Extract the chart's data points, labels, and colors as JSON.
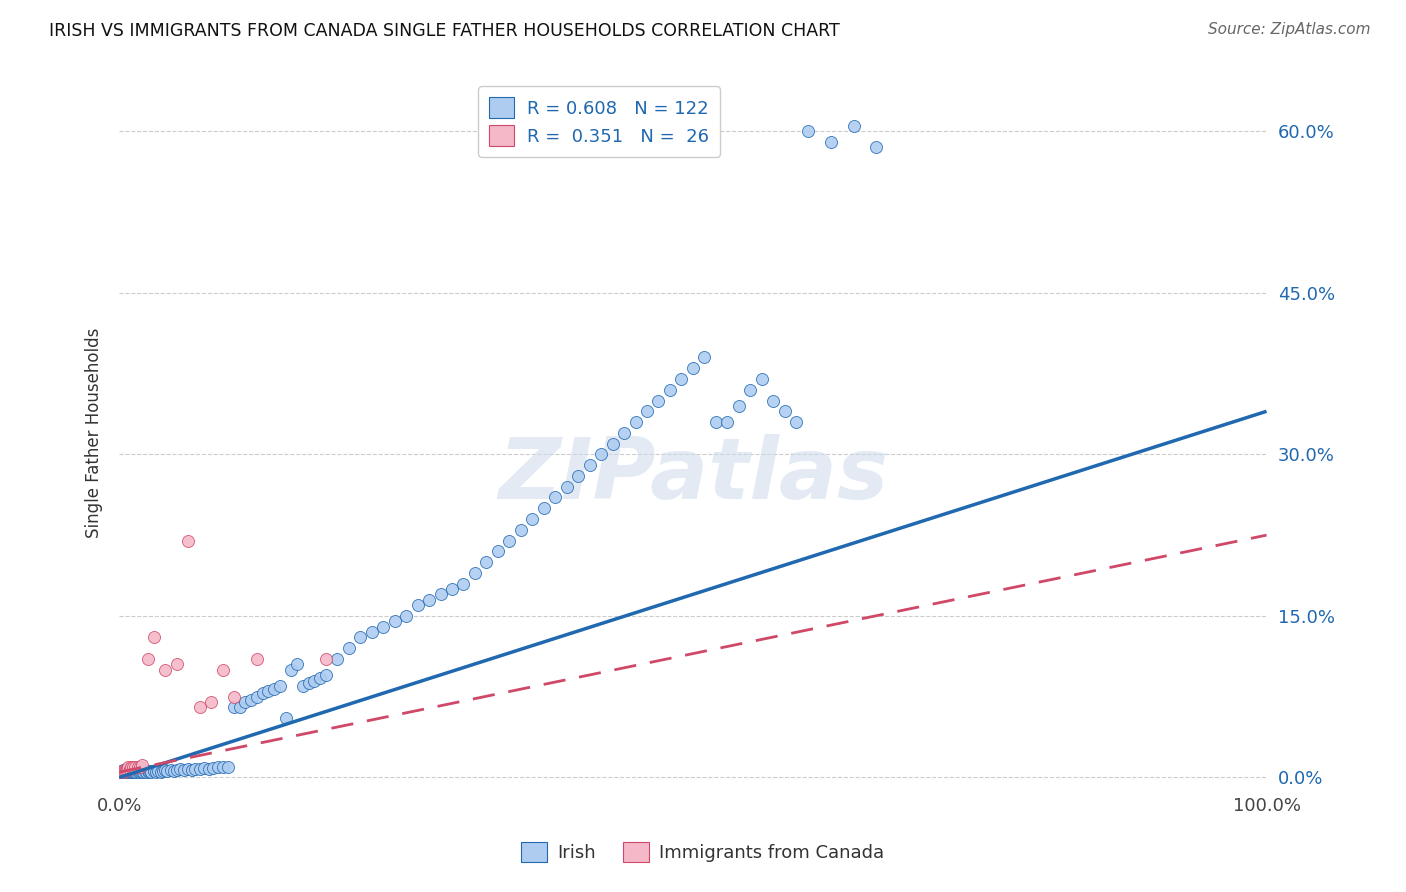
{
  "title": "IRISH VS IMMIGRANTS FROM CANADA SINGLE FATHER HOUSEHOLDS CORRELATION CHART",
  "source": "Source: ZipAtlas.com",
  "ylabel": "Single Father Households",
  "ytick_labels": [
    "0.0%",
    "15.0%",
    "30.0%",
    "45.0%",
    "60.0%"
  ],
  "ytick_values": [
    0.0,
    0.15,
    0.3,
    0.45,
    0.6
  ],
  "xlim": [
    0.0,
    1.0
  ],
  "ylim": [
    -0.01,
    0.65
  ],
  "legend_r_irish": "0.608",
  "legend_n_irish": "122",
  "legend_r_canada": "0.351",
  "legend_n_canada": "26",
  "irish_color": "#aeccf0",
  "canada_color": "#f5b8c8",
  "irish_line_color": "#2068b0",
  "canada_line_color": "#d04868",
  "watermark": "ZIPatlas",
  "irish_slope": 0.34,
  "irish_intercept": 0.0,
  "canada_slope": 0.22,
  "canada_intercept": 0.005,
  "irish_x": [
    0.001,
    0.002,
    0.002,
    0.003,
    0.003,
    0.004,
    0.004,
    0.005,
    0.005,
    0.006,
    0.006,
    0.007,
    0.007,
    0.008,
    0.008,
    0.009,
    0.009,
    0.01,
    0.01,
    0.011,
    0.011,
    0.012,
    0.012,
    0.013,
    0.014,
    0.015,
    0.016,
    0.017,
    0.018,
    0.019,
    0.02,
    0.021,
    0.022,
    0.023,
    0.025,
    0.026,
    0.027,
    0.028,
    0.03,
    0.032,
    0.034,
    0.036,
    0.038,
    0.04,
    0.042,
    0.045,
    0.048,
    0.05,
    0.053,
    0.056,
    0.06,
    0.063,
    0.066,
    0.07,
    0.074,
    0.078,
    0.082,
    0.086,
    0.09,
    0.095,
    0.1,
    0.105,
    0.11,
    0.115,
    0.12,
    0.125,
    0.13,
    0.135,
    0.14,
    0.145,
    0.15,
    0.155,
    0.16,
    0.165,
    0.17,
    0.175,
    0.18,
    0.19,
    0.2,
    0.21,
    0.22,
    0.23,
    0.24,
    0.25,
    0.26,
    0.27,
    0.28,
    0.29,
    0.3,
    0.31,
    0.32,
    0.33,
    0.34,
    0.35,
    0.36,
    0.37,
    0.38,
    0.39,
    0.4,
    0.41,
    0.42,
    0.43,
    0.44,
    0.45,
    0.46,
    0.47,
    0.48,
    0.49,
    0.5,
    0.51,
    0.52,
    0.53,
    0.54,
    0.55,
    0.56,
    0.57,
    0.58,
    0.59,
    0.6,
    0.62,
    0.64,
    0.66
  ],
  "irish_y": [
    0.005,
    0.005,
    0.006,
    0.005,
    0.007,
    0.005,
    0.006,
    0.005,
    0.006,
    0.005,
    0.006,
    0.005,
    0.007,
    0.005,
    0.006,
    0.005,
    0.006,
    0.005,
    0.007,
    0.005,
    0.006,
    0.005,
    0.006,
    0.005,
    0.006,
    0.005,
    0.006,
    0.005,
    0.006,
    0.005,
    0.006,
    0.005,
    0.006,
    0.005,
    0.006,
    0.005,
    0.006,
    0.005,
    0.006,
    0.005,
    0.006,
    0.005,
    0.006,
    0.007,
    0.006,
    0.007,
    0.006,
    0.007,
    0.008,
    0.007,
    0.008,
    0.007,
    0.008,
    0.008,
    0.009,
    0.008,
    0.009,
    0.01,
    0.01,
    0.01,
    0.065,
    0.065,
    0.07,
    0.072,
    0.075,
    0.078,
    0.08,
    0.082,
    0.085,
    0.055,
    0.1,
    0.105,
    0.085,
    0.088,
    0.09,
    0.092,
    0.095,
    0.11,
    0.12,
    0.13,
    0.135,
    0.14,
    0.145,
    0.15,
    0.16,
    0.165,
    0.17,
    0.175,
    0.18,
    0.19,
    0.2,
    0.21,
    0.22,
    0.23,
    0.24,
    0.25,
    0.26,
    0.27,
    0.28,
    0.29,
    0.3,
    0.31,
    0.32,
    0.33,
    0.34,
    0.35,
    0.36,
    0.37,
    0.38,
    0.39,
    0.33,
    0.33,
    0.345,
    0.36,
    0.37,
    0.35,
    0.34,
    0.33,
    0.6,
    0.59,
    0.605,
    0.585
  ],
  "canada_x": [
    0.001,
    0.002,
    0.003,
    0.004,
    0.005,
    0.006,
    0.007,
    0.008,
    0.009,
    0.01,
    0.012,
    0.014,
    0.016,
    0.018,
    0.02,
    0.025,
    0.03,
    0.04,
    0.05,
    0.06,
    0.07,
    0.08,
    0.09,
    0.1,
    0.12,
    0.18
  ],
  "canada_y": [
    0.005,
    0.006,
    0.005,
    0.006,
    0.006,
    0.007,
    0.008,
    0.01,
    0.008,
    0.01,
    0.01,
    0.01,
    0.01,
    0.01,
    0.012,
    0.11,
    0.13,
    0.1,
    0.105,
    0.22,
    0.065,
    0.07,
    0.1,
    0.075,
    0.11,
    0.11
  ]
}
